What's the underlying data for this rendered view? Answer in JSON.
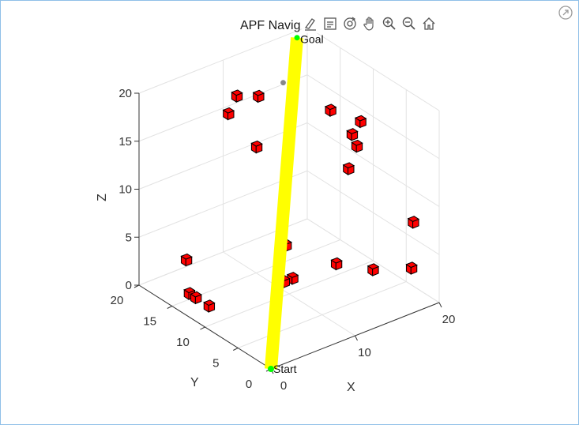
{
  "window": {
    "undock_icon": "undock-icon"
  },
  "toolbar": {
    "buttons": [
      {
        "name": "brush-button",
        "icon": "brush-icon"
      },
      {
        "name": "datatip-button",
        "icon": "datatip-icon"
      },
      {
        "name": "rotate-button",
        "icon": "rotate-3d-icon"
      },
      {
        "name": "pan-button",
        "icon": "hand-pan-icon"
      },
      {
        "name": "zoom-in-button",
        "icon": "zoom-in-icon"
      },
      {
        "name": "zoom-out-button",
        "icon": "zoom-out-icon"
      },
      {
        "name": "home-button",
        "icon": "home-icon"
      }
    ]
  },
  "chart_data": {
    "type": "scatter",
    "title": "APF Navig",
    "xlabel": "X",
    "ylabel": "Y",
    "zlabel": "Z",
    "xlim": [
      0,
      20
    ],
    "ylim": [
      0,
      20
    ],
    "zlim": [
      0,
      20
    ],
    "xticks": [
      0,
      10,
      20
    ],
    "yticks": [
      0,
      5,
      10,
      15,
      20
    ],
    "zticks": [
      0,
      5,
      10,
      15,
      20
    ],
    "grid": true,
    "view": "3d",
    "colors": {
      "obstacle": "#ff0000",
      "obstacle_edge": "#000000",
      "path": "#ffff00",
      "start": "#00ff00",
      "goal": "#00ff00",
      "robot": "#888888",
      "grid": "#e2e2e2",
      "axis": "#333333"
    },
    "start": {
      "x": 0,
      "y": 0,
      "z": 0,
      "label": "Start"
    },
    "goal": {
      "x": 18,
      "y": 19,
      "z": 20,
      "label": "Goal"
    },
    "robot": {
      "x": 14,
      "y": 16,
      "z": 18
    },
    "path": [
      [
        0,
        0,
        0
      ],
      [
        18,
        19,
        20
      ]
    ],
    "obstacles": [
      {
        "x": 11,
        "y": 16,
        "z": 17
      },
      {
        "x": 10,
        "y": 18,
        "z": 16.5
      },
      {
        "x": 9,
        "y": 18,
        "z": 15
      },
      {
        "x": 10,
        "y": 15,
        "z": 12.5
      },
      {
        "x": 18,
        "y": 14,
        "z": 14
      },
      {
        "x": 19,
        "y": 12,
        "z": 12
      },
      {
        "x": 18,
        "y": 10,
        "z": 12
      },
      {
        "x": 20,
        "y": 12,
        "z": 13
      },
      {
        "x": 17,
        "y": 10,
        "z": 10
      },
      {
        "x": 20,
        "y": 4,
        "z": 6
      },
      {
        "x": 8,
        "y": 8,
        "z": 6
      },
      {
        "x": 8,
        "y": 7,
        "z": 3
      },
      {
        "x": 7,
        "y": 7,
        "z": 3
      },
      {
        "x": 4,
        "y": 18,
        "z": 1.5
      },
      {
        "x": 14,
        "y": 8,
        "z": 2
      },
      {
        "x": 16,
        "y": 5,
        "z": 2
      },
      {
        "x": 19,
        "y": 3,
        "z": 2
      },
      {
        "x": 2,
        "y": 15,
        "z": 0
      },
      {
        "x": 2,
        "y": 14,
        "z": 0
      },
      {
        "x": 2,
        "y": 12,
        "z": 0
      }
    ]
  }
}
